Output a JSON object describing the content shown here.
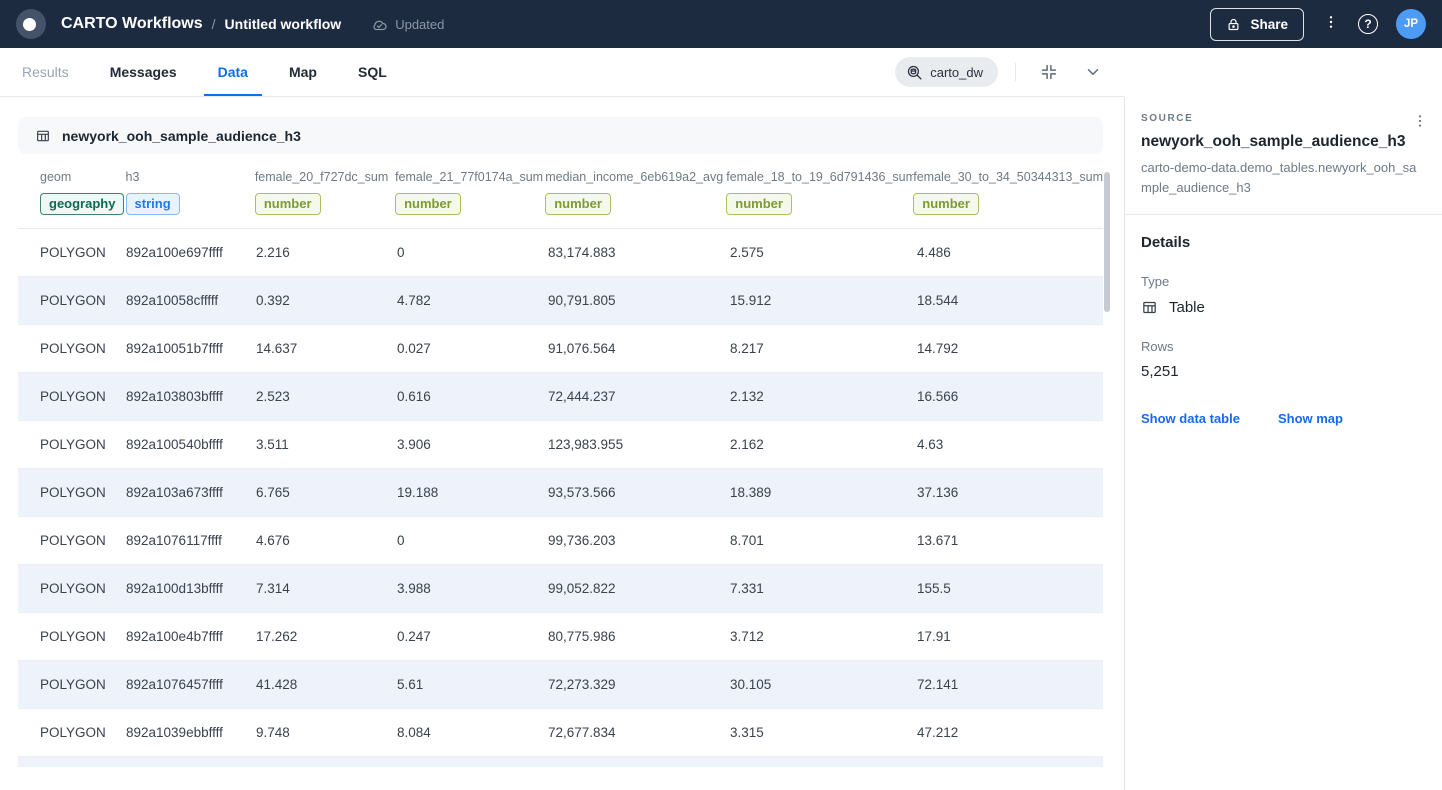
{
  "topbar": {
    "app_title": "CARTO Workflows",
    "separator": "/",
    "workflow_name": "Untitled workflow",
    "status": "Updated",
    "share_label": "Share",
    "avatar_initials": "JP",
    "help_label": "?"
  },
  "tabs": {
    "items": [
      {
        "label": "Results",
        "state": "muted"
      },
      {
        "label": "Messages",
        "state": ""
      },
      {
        "label": "Data",
        "state": "active"
      },
      {
        "label": "Map",
        "state": ""
      },
      {
        "label": "SQL",
        "state": ""
      }
    ],
    "connection": "carto_dw"
  },
  "table": {
    "title": "newyork_ooh_sample_audience_h3",
    "columns": [
      {
        "name": "geom",
        "type": "geography"
      },
      {
        "name": "h3",
        "type": "string"
      },
      {
        "name": "female_20_f727dc_sum",
        "type": "number"
      },
      {
        "name": "female_21_77f0174a_sum",
        "type": "number"
      },
      {
        "name": "median_income_6eb619a2_avg",
        "type": "number"
      },
      {
        "name": "female_18_to_19_6d791436_sum",
        "type": "number"
      },
      {
        "name": "female_30_to_34_50344313_sum",
        "type": "number"
      }
    ],
    "rows": [
      [
        "POLYGON",
        "892a100e697ffff",
        "2.216",
        "0",
        "83,174.883",
        "2.575",
        "4.486"
      ],
      [
        "POLYGON",
        "892a10058cfffff",
        "0.392",
        "4.782",
        "90,791.805",
        "15.912",
        "18.544"
      ],
      [
        "POLYGON",
        "892a10051b7ffff",
        "14.637",
        "0.027",
        "91,076.564",
        "8.217",
        "14.792"
      ],
      [
        "POLYGON",
        "892a103803bffff",
        "2.523",
        "0.616",
        "72,444.237",
        "2.132",
        "16.566"
      ],
      [
        "POLYGON",
        "892a100540bffff",
        "3.511",
        "3.906",
        "123,983.955",
        "2.162",
        "4.63"
      ],
      [
        "POLYGON",
        "892a103a673ffff",
        "6.765",
        "19.188",
        "93,573.566",
        "18.389",
        "37.136"
      ],
      [
        "POLYGON",
        "892a1076117ffff",
        "4.676",
        "0",
        "99,736.203",
        "8.701",
        "13.671"
      ],
      [
        "POLYGON",
        "892a100d13bffff",
        "7.314",
        "3.988",
        "99,052.822",
        "7.331",
        "155.5"
      ],
      [
        "POLYGON",
        "892a100e4b7ffff",
        "17.262",
        "0.247",
        "80,775.986",
        "3.712",
        "17.91"
      ],
      [
        "POLYGON",
        "892a1076457ffff",
        "41.428",
        "5.61",
        "72,273.329",
        "30.105",
        "72.141"
      ],
      [
        "POLYGON",
        "892a1039ebbffff",
        "9.748",
        "8.084",
        "72,677.834",
        "3.315",
        "47.212"
      ]
    ]
  },
  "sidebar": {
    "source_label": "SOURCE",
    "source_name": "newyork_ooh_sample_audience_h3",
    "source_path": "carto-demo-data.demo_tables.newyork_ooh_sample_audience_h3",
    "details_label": "Details",
    "type_label": "Type",
    "type_value": "Table",
    "rows_label": "Rows",
    "rows_value": "5,251",
    "links": [
      {
        "label": "Show data table"
      },
      {
        "label": "Show map"
      }
    ]
  },
  "colors": {
    "topbar_bg": "#1d2b40",
    "accent_blue": "#0d6ef0",
    "link_blue": "#1769f5",
    "avatar_blue": "#4c9bf5",
    "row_alt_bg": "#edf2fb",
    "badge_geography_text": "#0c6a55",
    "badge_string_text": "#1e7af0",
    "badge_number_text": "#7d9a34"
  }
}
